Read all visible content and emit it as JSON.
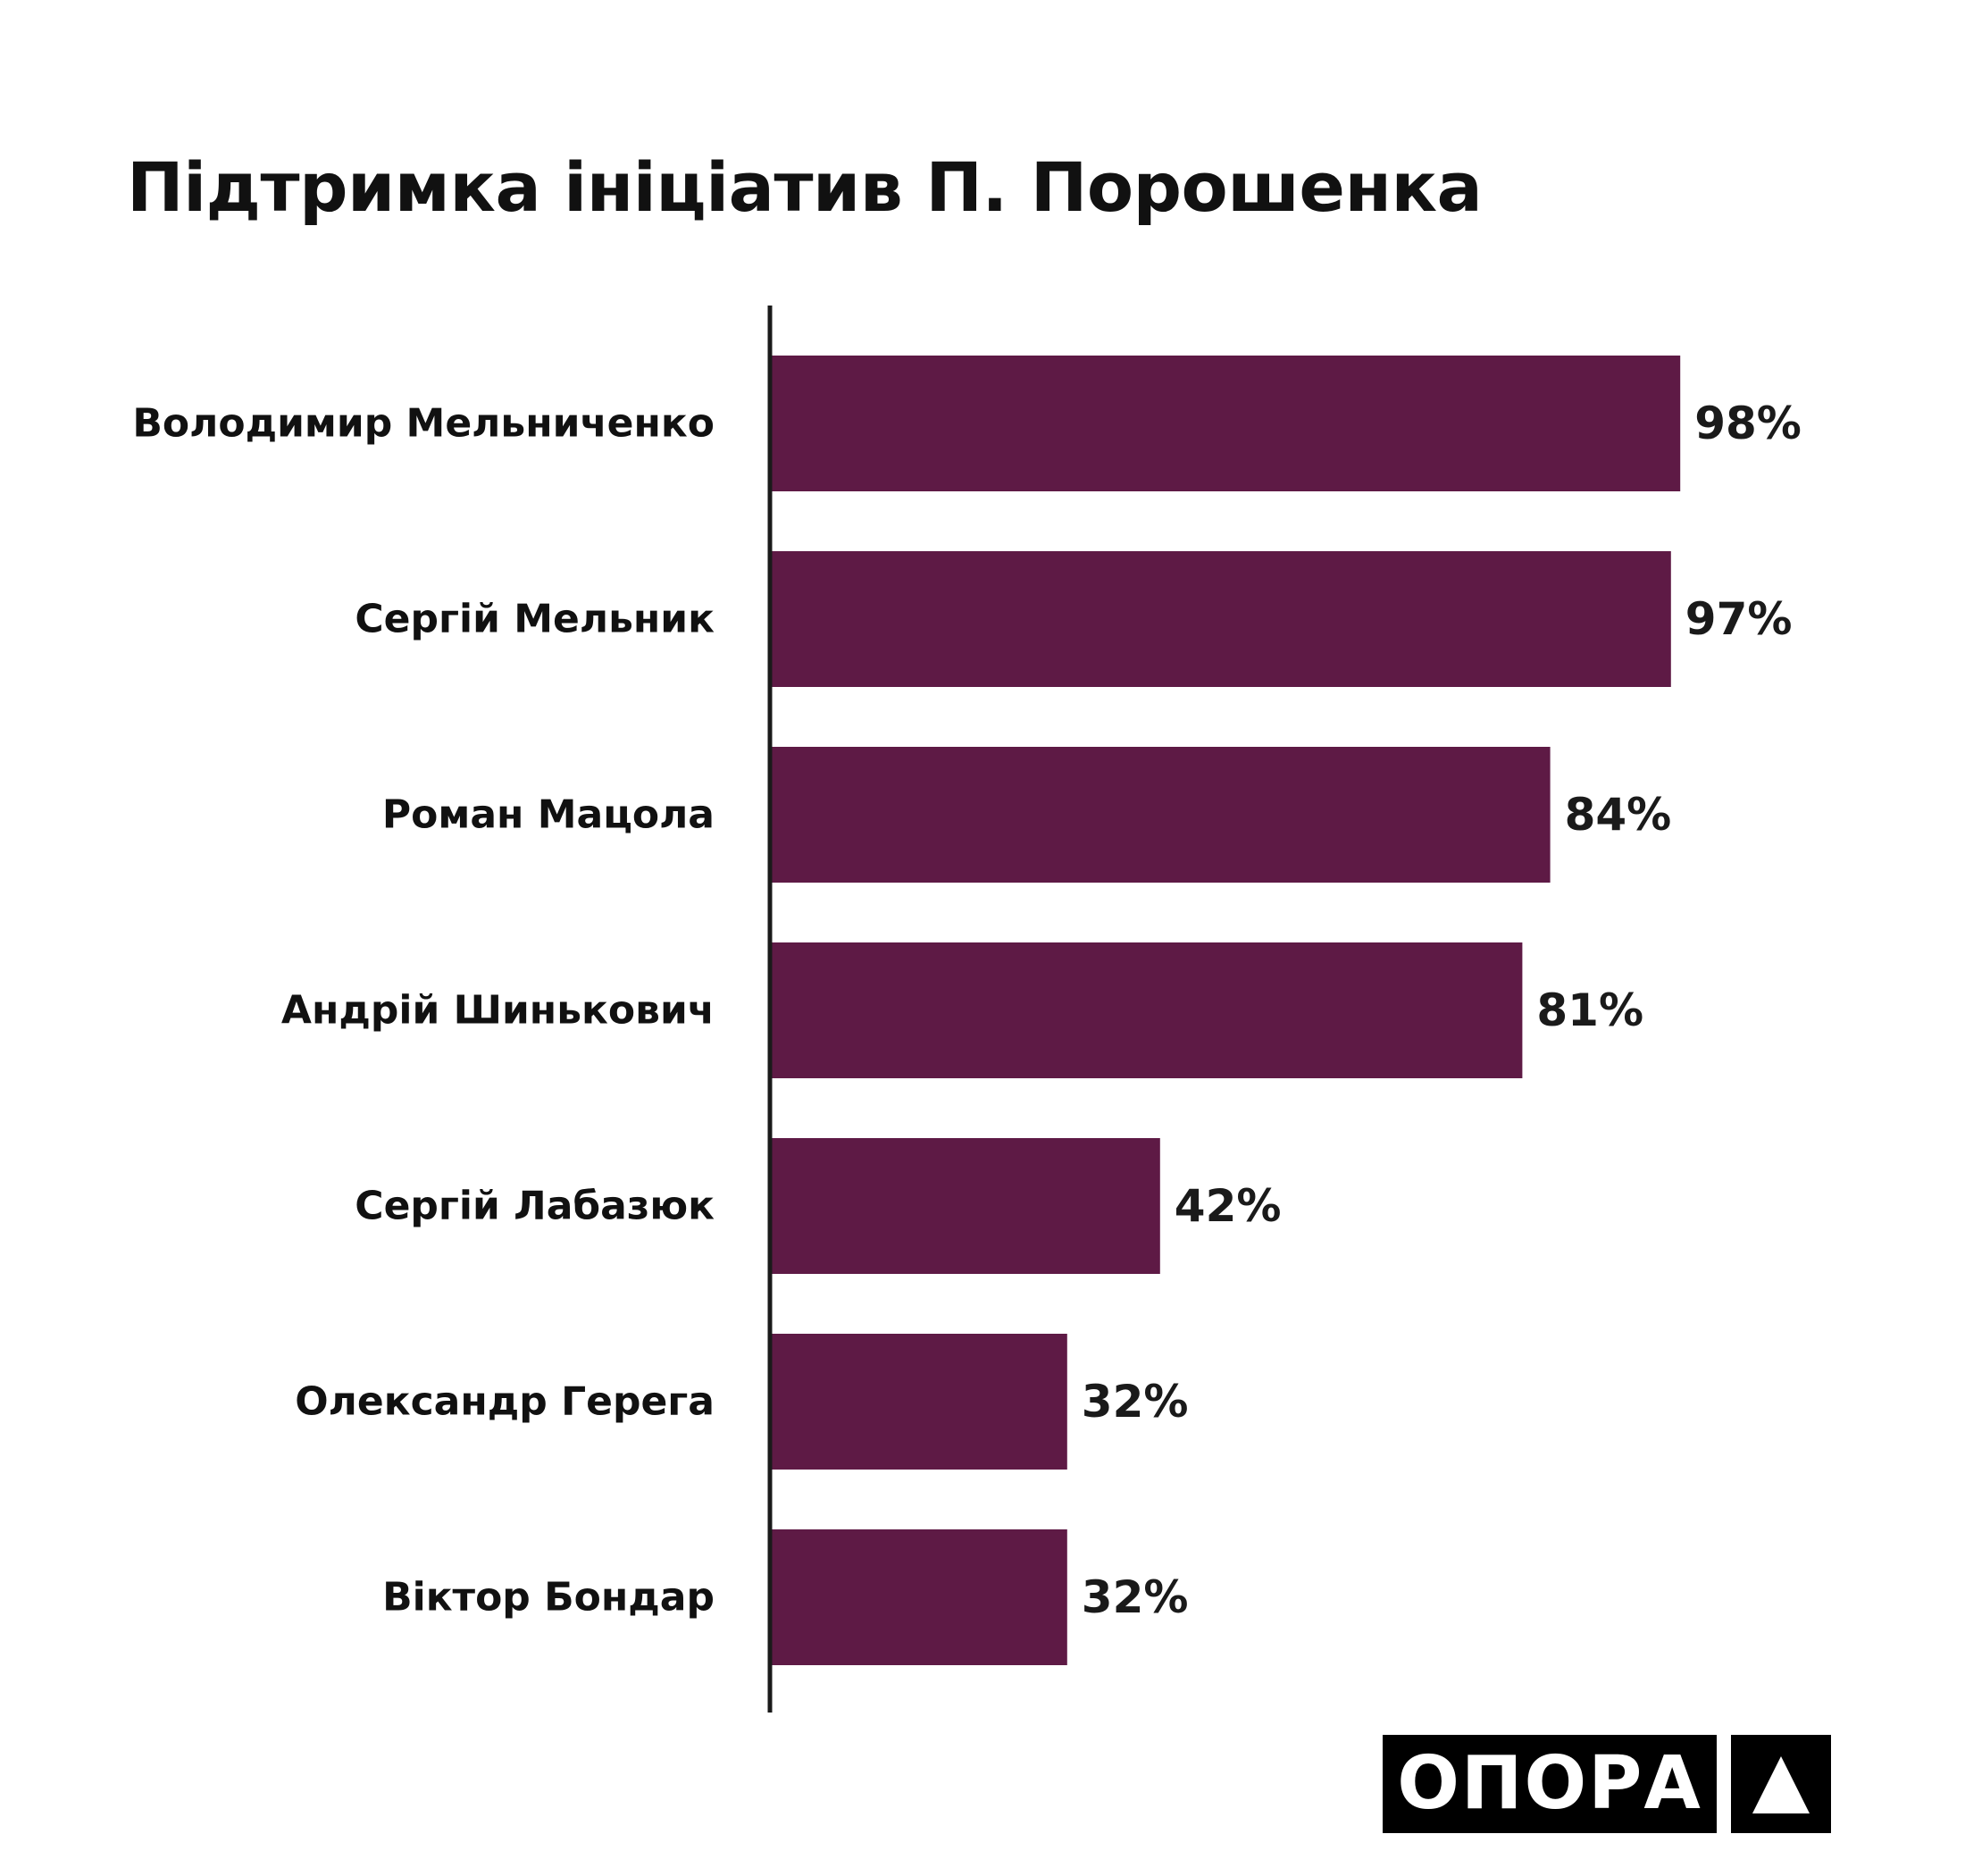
{
  "chart_data": {
    "type": "bar",
    "orientation": "horizontal",
    "title": "Підтримка ініціатив П. Порошенка",
    "categories": [
      "Володимир Мельниченко",
      "Сергій Мельник",
      "Роман Мацола",
      "Андрій Шинькович",
      "Сергій Лабазюк",
      "Олександр Герега",
      "Віктор Бондар"
    ],
    "values": [
      98,
      97,
      84,
      81,
      42,
      32,
      32
    ],
    "value_labels": [
      "98%",
      "97%",
      "84%",
      "81%",
      "42%",
      "32%",
      "32%"
    ],
    "unit": "%",
    "xlim": [
      0,
      100
    ],
    "grid": false,
    "legend": "none",
    "colors": {
      "bar": "#5E1A45",
      "axis": "#1a1a1a",
      "text": "#111111"
    }
  },
  "logo": {
    "text": "ОПОРА",
    "mark_icon": "triangle-icon",
    "background": "#000000",
    "foreground": "#ffffff"
  }
}
